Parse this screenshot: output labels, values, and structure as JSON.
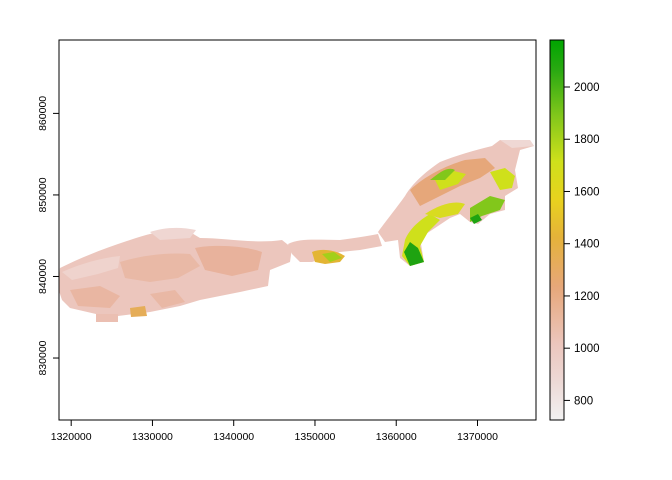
{
  "map": {
    "x_ticks": [
      {
        "label": "1320000"
      },
      {
        "label": "1330000"
      },
      {
        "label": "1340000"
      },
      {
        "label": "1350000"
      },
      {
        "label": "1360000"
      },
      {
        "label": "1370000"
      }
    ],
    "y_ticks": [
      {
        "label": "830000"
      },
      {
        "label": "840000"
      },
      {
        "label": "850000"
      },
      {
        "label": "860000"
      }
    ],
    "x_range": [
      1318500,
      1377200
    ],
    "y_range": [
      822400,
      869000
    ]
  },
  "legend": {
    "value_range": [
      725,
      2180
    ],
    "ticks": [
      {
        "label": "800",
        "value": 800
      },
      {
        "label": "1000",
        "value": 1000
      },
      {
        "label": "1200",
        "value": 1200
      },
      {
        "label": "1400",
        "value": 1400
      },
      {
        "label": "1600",
        "value": 1600
      },
      {
        "label": "1800",
        "value": 1800
      },
      {
        "label": "2000",
        "value": 2000
      }
    ],
    "colors": [
      "#f2f2f2",
      "#ecc6bd",
      "#e6a77a",
      "#e8c32e",
      "#cfe01b",
      "#82c71b",
      "#1fa311",
      "#00a600"
    ]
  }
}
